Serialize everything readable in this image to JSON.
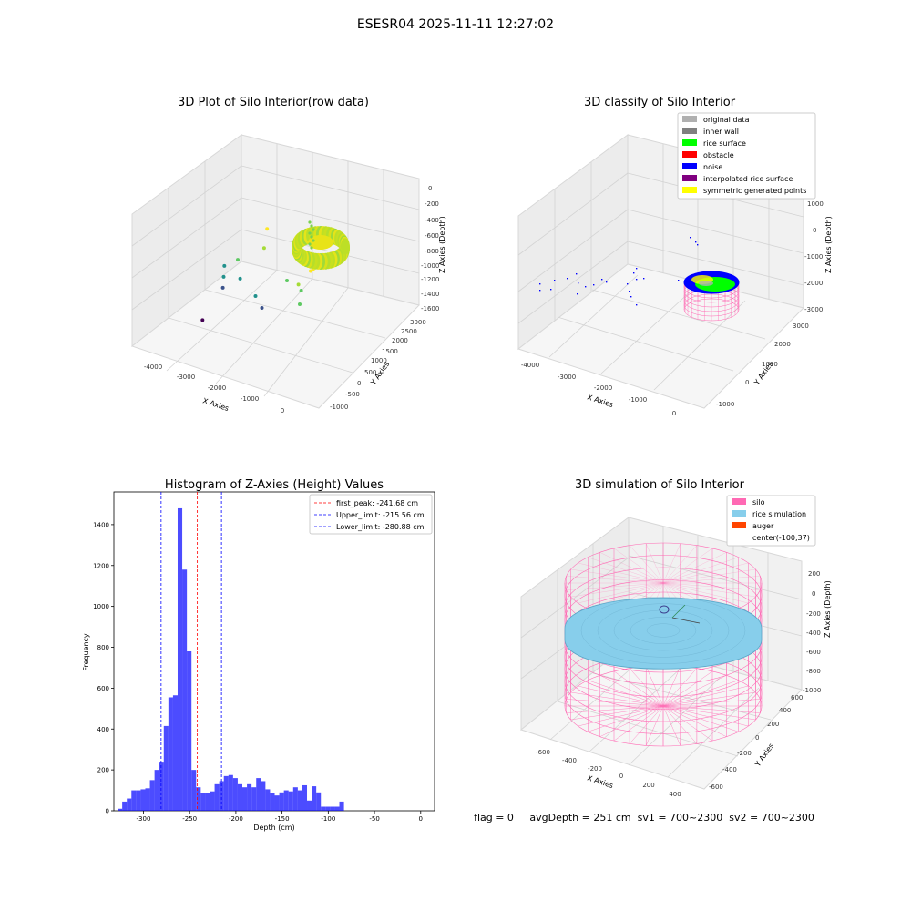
{
  "suptitle": "ESESR04 2025-11-11 12:27:02",
  "footer": "flag = 0     avgDepth = 251 cm  sv1 = 700~2300  sv2 = 700~2300",
  "chart_data": [
    {
      "type": "scatter",
      "title": "3D Plot of Silo Interior(row data)",
      "xlabel": "X Axies",
      "ylabel": "Y Axies",
      "zlabel": "Z Axies (Depth)",
      "xticks": [
        "-4000",
        "-3000",
        "-2000",
        "-1000",
        "0"
      ],
      "yticks": [
        "-1000",
        "-500",
        "0",
        "500",
        "1000",
        "1500",
        "2000",
        "2500",
        "3000"
      ],
      "zticks": [
        "0",
        "-200",
        "-400",
        "-600",
        "-800",
        "-1000",
        "-1200",
        "-1400",
        "-1600"
      ],
      "colormap": "viridis",
      "points": [
        {
          "x": -4100,
          "y": 1500,
          "z": -1150
        },
        {
          "x": -4050,
          "y": 1400,
          "z": -1250
        },
        {
          "x": -4000,
          "y": 1300,
          "z": -1350
        },
        {
          "x": -3900,
          "y": 1700,
          "z": -1100
        },
        {
          "x": -3700,
          "y": 1500,
          "z": -1250
        },
        {
          "x": -3500,
          "y": 2200,
          "z": -800
        },
        {
          "x": -3300,
          "y": 1800,
          "z": -900
        },
        {
          "x": -3100,
          "y": 1200,
          "z": -1300
        },
        {
          "x": -2800,
          "y": 1000,
          "z": -1350
        },
        {
          "x": -2300,
          "y": 1200,
          "z": -1000
        },
        {
          "x": -1800,
          "y": 900,
          "z": -900
        },
        {
          "x": -1800,
          "y": 1000,
          "z": -1000
        },
        {
          "x": -1700,
          "y": 1200,
          "z": -800
        },
        {
          "x": -1700,
          "y": 800,
          "z": -1100
        },
        {
          "x": -1500,
          "y": 1000,
          "z": -700
        },
        {
          "x": -4100,
          "y": 700,
          "z": -1600
        }
      ],
      "surface": {
        "center_x": -100,
        "center_y": 1200,
        "depth_min": -900,
        "depth_max": -600
      }
    },
    {
      "type": "scatter",
      "title": "3D classify of Silo Interior",
      "xlabel": "X Axies",
      "ylabel": "Y Axies",
      "zlabel": "Z Axies (Depth)",
      "xticks": [
        "-4000",
        "-3000",
        "-2000",
        "-1000",
        "0"
      ],
      "yticks": [
        "-1000",
        "0",
        "1000",
        "2000",
        "3000"
      ],
      "zticks": [
        "1000",
        "0",
        "-1000",
        "-2000",
        "-3000"
      ],
      "legend": [
        {
          "label": "original data",
          "color": "#b0b0b0"
        },
        {
          "label": "inner wall",
          "color": "#808080"
        },
        {
          "label": "rice surface",
          "color": "#00ff00"
        },
        {
          "label": "obstacle",
          "color": "#ff0000"
        },
        {
          "label": "noise",
          "color": "#0000ff"
        },
        {
          "label": "interpolated rice surface",
          "color": "#800080"
        },
        {
          "label": "symmetric generated points",
          "color": "#ffff00"
        }
      ]
    },
    {
      "type": "bar",
      "title": "Histogram of Z-Axies (Height) Values",
      "xlabel": "Depth (cm)",
      "ylabel": "Frequency",
      "xlim": [
        -332,
        15
      ],
      "ylim": [
        0,
        1560
      ],
      "xticks": [
        -300,
        -250,
        -200,
        -150,
        -100,
        -50,
        0
      ],
      "yticks": [
        0,
        200,
        400,
        600,
        800,
        1000,
        1200,
        1400
      ],
      "bar_color": "#0000ff",
      "bin_start": -328,
      "bin_width": 5,
      "values": [
        10,
        45,
        60,
        100,
        100,
        105,
        110,
        150,
        200,
        240,
        415,
        555,
        565,
        1480,
        1180,
        780,
        200,
        115,
        85,
        85,
        95,
        130,
        145,
        170,
        175,
        160,
        130,
        115,
        130,
        115,
        160,
        145,
        105,
        85,
        75,
        90,
        100,
        95,
        115,
        100,
        125,
        50,
        120,
        90,
        20,
        20,
        20,
        20,
        45
      ],
      "vlines": [
        {
          "x": -241.68,
          "label": "first_peak: -241.68 cm",
          "color": "#ff0000"
        },
        {
          "x": -215.56,
          "label": "Upper_limit: -215.56 cm",
          "color": "#0000ff"
        },
        {
          "x": -280.88,
          "label": "Lower_limit: -280.88 cm",
          "color": "#0000ff"
        }
      ]
    },
    {
      "type": "surface",
      "title": "3D simulation of Silo Interior",
      "xlabel": "X Axies",
      "ylabel": "Y Axies",
      "zlabel": "Z Axies (Depth)",
      "xticks": [
        "-600",
        "-400",
        "-200",
        "0",
        "200",
        "400"
      ],
      "yticks": [
        "-600",
        "-400",
        "-200",
        "0",
        "200",
        "400",
        "600"
      ],
      "zticks": [
        "200",
        "0",
        "-200",
        "-400",
        "-600",
        "-800",
        "-1000"
      ],
      "legend": [
        {
          "label": "silo",
          "color": "#ff69b4"
        },
        {
          "label": "rice simulation",
          "color": "#87ceeb"
        },
        {
          "label": "auger",
          "color": "#ff4500"
        },
        {
          "label": "center(-100,37)",
          "color": ""
        }
      ]
    }
  ]
}
